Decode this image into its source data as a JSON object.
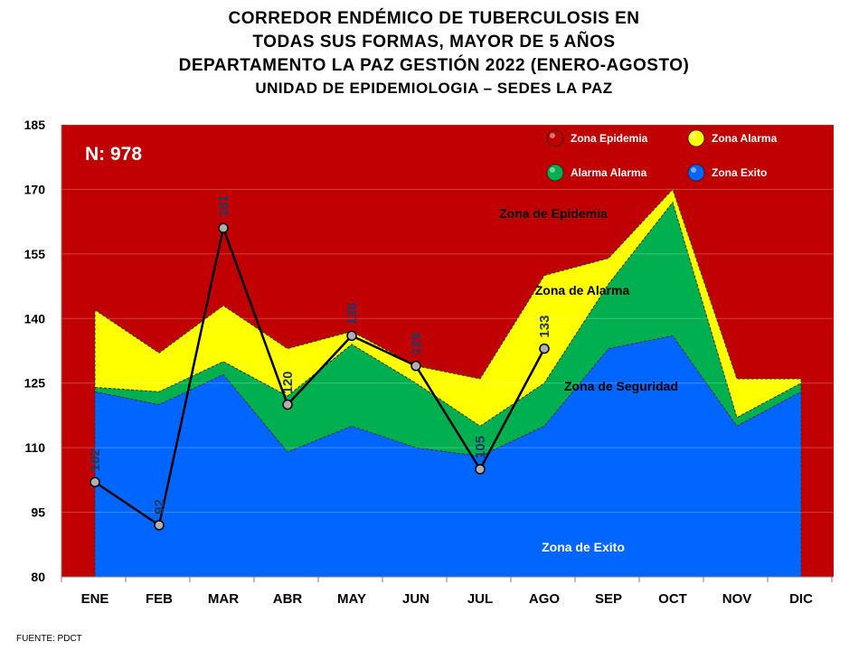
{
  "title_lines": [
    "CORREDOR ENDÉMICO DE TUBERCULOSIS EN",
    "TODAS SUS FORMAS, MAYOR DE 5 AÑOS",
    "DEPARTAMENTO LA PAZ GESTIÓN 2022 (ENERO-AGOSTO)",
    "UNIDAD DE EPIDEMIOLOGIA – SEDES LA PAZ"
  ],
  "footer": "FUENTE:  PDCT",
  "chart_data": {
    "type": "area",
    "categories": [
      "ENE",
      "FEB",
      "MAR",
      "ABR",
      "MAY",
      "JUN",
      "JUL",
      "AGO",
      "SEP",
      "OCT",
      "NOV",
      "DIC"
    ],
    "ylim": [
      80,
      185
    ],
    "yticks": [
      80,
      95,
      110,
      125,
      140,
      155,
      170,
      185
    ],
    "n_label": "N: 978",
    "colors": {
      "epidemia": "#c00000",
      "alarma": "#ffff00",
      "seguridad": "#00b050",
      "exito": "#0066ff",
      "line": "#000000",
      "marker": "#b0b0b0"
    },
    "bands": {
      "exito_upper": [
        123,
        120,
        127,
        109,
        115,
        110,
        108,
        115,
        133,
        136,
        115,
        123
      ],
      "seguridad_upper": [
        124,
        123,
        130,
        122,
        134,
        125,
        115,
        125,
        148,
        167,
        117,
        125
      ],
      "alarma_upper": [
        142,
        132,
        143,
        133,
        137,
        129,
        126,
        150,
        154,
        170,
        126,
        126
      ]
    },
    "observed": {
      "categories": [
        "ENE",
        "FEB",
        "MAR",
        "ABR",
        "MAY",
        "JUN",
        "JUL",
        "AGO"
      ],
      "values": [
        102,
        92,
        161,
        120,
        136,
        129,
        105,
        133
      ]
    },
    "legend": [
      {
        "label": "Zona Epidemia",
        "color": "#c00000"
      },
      {
        "label": "Zona  Alarma",
        "color": "#ffff00"
      },
      {
        "label": "Alarma  Alarma",
        "color": "#00b050"
      },
      {
        "label": "Zona Exito",
        "color": "#0066ff"
      }
    ],
    "zone_labels": {
      "epidemia": "Zona de Epidemia",
      "alarma": "Zona de Alarma",
      "seguridad": "Zona de Seguridad",
      "exito": "Zona de Exito"
    }
  }
}
